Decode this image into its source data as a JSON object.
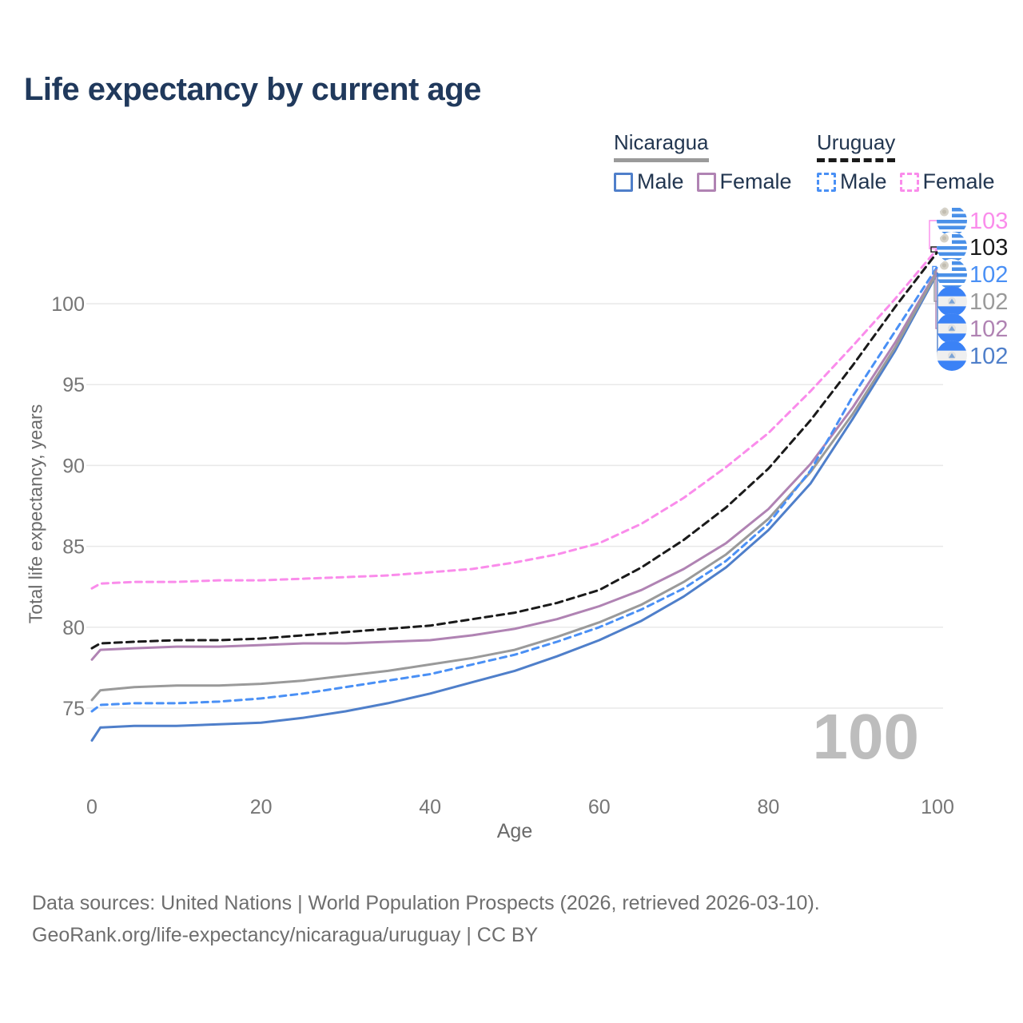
{
  "title": "Life expectancy by current age",
  "watermark": "100",
  "legend": {
    "groups": [
      {
        "country": "Nicaragua",
        "line_style": "solid",
        "line_color": "#9a9a9a",
        "items": [
          {
            "label": "Male",
            "color": "#4f7fca",
            "style": "solid"
          },
          {
            "label": "Female",
            "color": "#b083b3",
            "style": "solid"
          }
        ]
      },
      {
        "country": "Uruguay",
        "line_style": "dashed",
        "line_color": "#1a1a1a",
        "items": [
          {
            "label": "Male",
            "color": "#4a90f5",
            "style": "dashed"
          },
          {
            "label": "Female",
            "color": "#fa8ceb",
            "style": "dashed"
          }
        ]
      }
    ]
  },
  "chart_data": {
    "type": "line",
    "title": "Life expectancy by current age",
    "xlabel": "Age",
    "ylabel": "Total life expectancy, years",
    "xlim": [
      0,
      100
    ],
    "ylim": [
      72.5,
      104.5
    ],
    "xticks": [
      0,
      20,
      40,
      60,
      80,
      100
    ],
    "yticks": [
      75,
      80,
      85,
      90,
      95,
      100
    ],
    "grid": "horizontal-only",
    "legend_position": "top-right",
    "x_ages": [
      0,
      1,
      5,
      10,
      15,
      20,
      25,
      30,
      35,
      40,
      45,
      50,
      55,
      60,
      65,
      70,
      75,
      80,
      85,
      90,
      95,
      100
    ],
    "series": [
      {
        "id": "uruguay_female",
        "country": "Uruguay",
        "sex": "Female",
        "color": "#fa8ceb",
        "dash": "8 6",
        "width": 3,
        "flag": "uruguay",
        "end_label": "103",
        "values": [
          82.4,
          82.7,
          82.8,
          82.8,
          82.9,
          82.9,
          83.0,
          83.1,
          83.2,
          83.4,
          83.6,
          84.0,
          84.5,
          85.2,
          86.4,
          88.0,
          89.9,
          92.0,
          94.6,
          97.4,
          100.3,
          103.4
        ]
      },
      {
        "id": "uruguay_total",
        "country": "Uruguay",
        "sex": "Both sexes",
        "color": "#1a1a1a",
        "dash": "9 6",
        "width": 3,
        "flag": "uruguay",
        "end_label": "103",
        "values": [
          78.7,
          79.0,
          79.1,
          79.2,
          79.2,
          79.3,
          79.5,
          79.7,
          79.9,
          80.1,
          80.5,
          80.9,
          81.5,
          82.3,
          83.7,
          85.4,
          87.4,
          89.8,
          92.8,
          96.2,
          99.8,
          103.2
        ]
      },
      {
        "id": "uruguay_male",
        "country": "Uruguay",
        "sex": "Male",
        "color": "#4a90f5",
        "dash": "8 6",
        "width": 3,
        "flag": "uruguay",
        "end_label": "102",
        "values": [
          74.8,
          75.2,
          75.3,
          75.3,
          75.4,
          75.6,
          75.9,
          76.3,
          76.7,
          77.1,
          77.7,
          78.3,
          79.1,
          80.0,
          81.1,
          82.4,
          84.1,
          86.4,
          89.7,
          94.3,
          98.3,
          102.3
        ]
      },
      {
        "id": "nicaragua_total",
        "country": "Nicaragua",
        "sex": "Both sexes",
        "color": "#9a9a9a",
        "dash": null,
        "width": 3,
        "flag": "nicaragua",
        "end_label": "102",
        "values": [
          75.5,
          76.1,
          76.3,
          76.4,
          76.4,
          76.5,
          76.7,
          77.0,
          77.3,
          77.7,
          78.1,
          78.6,
          79.4,
          80.3,
          81.4,
          82.8,
          84.5,
          86.7,
          89.6,
          93.2,
          97.3,
          102.0
        ]
      },
      {
        "id": "nicaragua_female",
        "country": "Nicaragua",
        "sex": "Female",
        "color": "#b083b3",
        "dash": null,
        "width": 3,
        "flag": "nicaragua",
        "end_label": "102",
        "values": [
          78.0,
          78.6,
          78.7,
          78.8,
          78.8,
          78.9,
          79.0,
          79.0,
          79.1,
          79.2,
          79.5,
          79.9,
          80.5,
          81.3,
          82.3,
          83.6,
          85.2,
          87.3,
          90.1,
          93.6,
          97.6,
          102.1
        ]
      },
      {
        "id": "nicaragua_male",
        "country": "Nicaragua",
        "sex": "Male",
        "color": "#4f7fca",
        "dash": null,
        "width": 3,
        "flag": "nicaragua",
        "end_label": "102",
        "values": [
          73.0,
          73.8,
          73.9,
          73.9,
          74.0,
          74.1,
          74.4,
          74.8,
          75.3,
          75.9,
          76.6,
          77.3,
          78.2,
          79.2,
          80.4,
          81.9,
          83.7,
          86.0,
          88.9,
          92.9,
          97.1,
          101.9
        ]
      }
    ]
  },
  "footer": {
    "line1": "Data sources: United Nations | World Population Prospects (2026, retrieved 2026-03-10).",
    "line2": "GeoRank.org/life-expectancy/nicaragua/uruguay | CC BY"
  }
}
